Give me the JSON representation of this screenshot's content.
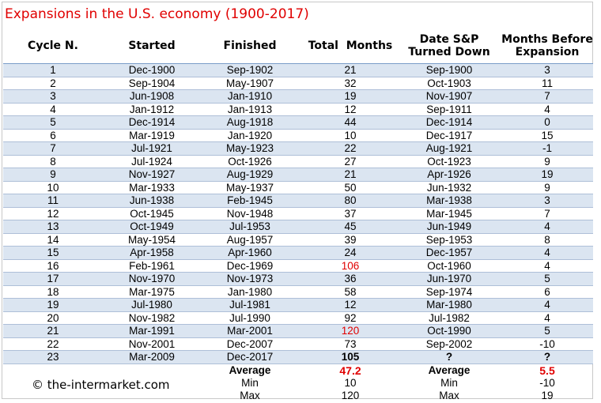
{
  "title": "Expansions in the U.S. economy (1900-2017)",
  "headers": {
    "cycle": "Cycle N.",
    "started": "Started",
    "finished": "Finished",
    "total": "Total  Months",
    "date_sp_line1": "Date S&P",
    "date_sp_line2": "Turned Down",
    "months_before_line1": "Months Before",
    "months_before_line2": "Expansion"
  },
  "rows": [
    {
      "cycle": "1",
      "started": "Dec-1900",
      "finished": "Sep-1902",
      "total": "21",
      "sp": "Sep-1900",
      "before": "3"
    },
    {
      "cycle": "2",
      "started": "Sep-1904",
      "finished": "May-1907",
      "total": "32",
      "sp": "Oct-1903",
      "before": "11"
    },
    {
      "cycle": "3",
      "started": "Jun-1908",
      "finished": "Jan-1910",
      "total": "19",
      "sp": "Nov-1907",
      "before": "7"
    },
    {
      "cycle": "4",
      "started": "Jan-1912",
      "finished": "Jan-1913",
      "total": "12",
      "sp": "Sep-1911",
      "before": "4"
    },
    {
      "cycle": "5",
      "started": "Dec-1914",
      "finished": "Aug-1918",
      "total": "44",
      "sp": "Dec-1914",
      "before": "0"
    },
    {
      "cycle": "6",
      "started": "Mar-1919",
      "finished": "Jan-1920",
      "total": "10",
      "sp": "Dec-1917",
      "before": "15"
    },
    {
      "cycle": "7",
      "started": "Jul-1921",
      "finished": "May-1923",
      "total": "22",
      "sp": "Aug-1921",
      "before": "-1"
    },
    {
      "cycle": "8",
      "started": "Jul-1924",
      "finished": "Oct-1926",
      "total": "27",
      "sp": "Oct-1923",
      "before": "9"
    },
    {
      "cycle": "9",
      "started": "Nov-1927",
      "finished": "Aug-1929",
      "total": "21",
      "sp": "Apr-1926",
      "before": "19"
    },
    {
      "cycle": "10",
      "started": "Mar-1933",
      "finished": "May-1937",
      "total": "50",
      "sp": "Jun-1932",
      "before": "9"
    },
    {
      "cycle": "11",
      "started": "Jun-1938",
      "finished": "Feb-1945",
      "total": "80",
      "sp": "Mar-1938",
      "before": "3"
    },
    {
      "cycle": "12",
      "started": "Oct-1945",
      "finished": "Nov-1948",
      "total": "37",
      "sp": "Mar-1945",
      "before": "7"
    },
    {
      "cycle": "13",
      "started": "Oct-1949",
      "finished": "Jul-1953",
      "total": "45",
      "sp": "Jun-1949",
      "before": "4"
    },
    {
      "cycle": "14",
      "started": "May-1954",
      "finished": "Aug-1957",
      "total": "39",
      "sp": "Sep-1953",
      "before": "8"
    },
    {
      "cycle": "15",
      "started": "Apr-1958",
      "finished": "Apr-1960",
      "total": "24",
      "sp": "Dec-1957",
      "before": "4"
    },
    {
      "cycle": "16",
      "started": "Feb-1961",
      "finished": "Dec-1969",
      "total": "106",
      "sp": "Oct-1960",
      "before": "4",
      "total_red": true
    },
    {
      "cycle": "17",
      "started": "Nov-1970",
      "finished": "Nov-1973",
      "total": "36",
      "sp": "Jun-1970",
      "before": "5"
    },
    {
      "cycle": "18",
      "started": "Mar-1975",
      "finished": "Jan-1980",
      "total": "58",
      "sp": "Sep-1974",
      "before": "6"
    },
    {
      "cycle": "19",
      "started": "Jul-1980",
      "finished": "Jul-1981",
      "total": "12",
      "sp": "Mar-1980",
      "before": "4"
    },
    {
      "cycle": "20",
      "started": "Nov-1982",
      "finished": "Jul-1990",
      "total": "92",
      "sp": "Jul-1982",
      "before": "4"
    },
    {
      "cycle": "21",
      "started": "Mar-1991",
      "finished": "Mar-2001",
      "total": "120",
      "sp": "Oct-1990",
      "before": "5",
      "total_red": true
    },
    {
      "cycle": "22",
      "started": "Nov-2001",
      "finished": "Dec-2007",
      "total": "73",
      "sp": "Sep-2002",
      "before": "-10"
    },
    {
      "cycle": "23",
      "started": "Mar-2009",
      "finished": "Dec-2017",
      "total": "105",
      "sp": "?",
      "before": "?",
      "bold": true
    }
  ],
  "summary": {
    "average_label": "Average",
    "average_total": "47.2",
    "average_label2": "Average",
    "average_before": "5.5",
    "min_label": "Min",
    "min_total": "10",
    "min_label2": "Min",
    "min_before": "-10",
    "max_label": "Max",
    "max_total": "120",
    "max_label2": "Max",
    "max_before": "19"
  },
  "credit": "© the-intermarket.com",
  "colors": {
    "accent_red": "#e00000",
    "row_shade": "#dbe5f1",
    "grid_line": "#aebfd8"
  }
}
